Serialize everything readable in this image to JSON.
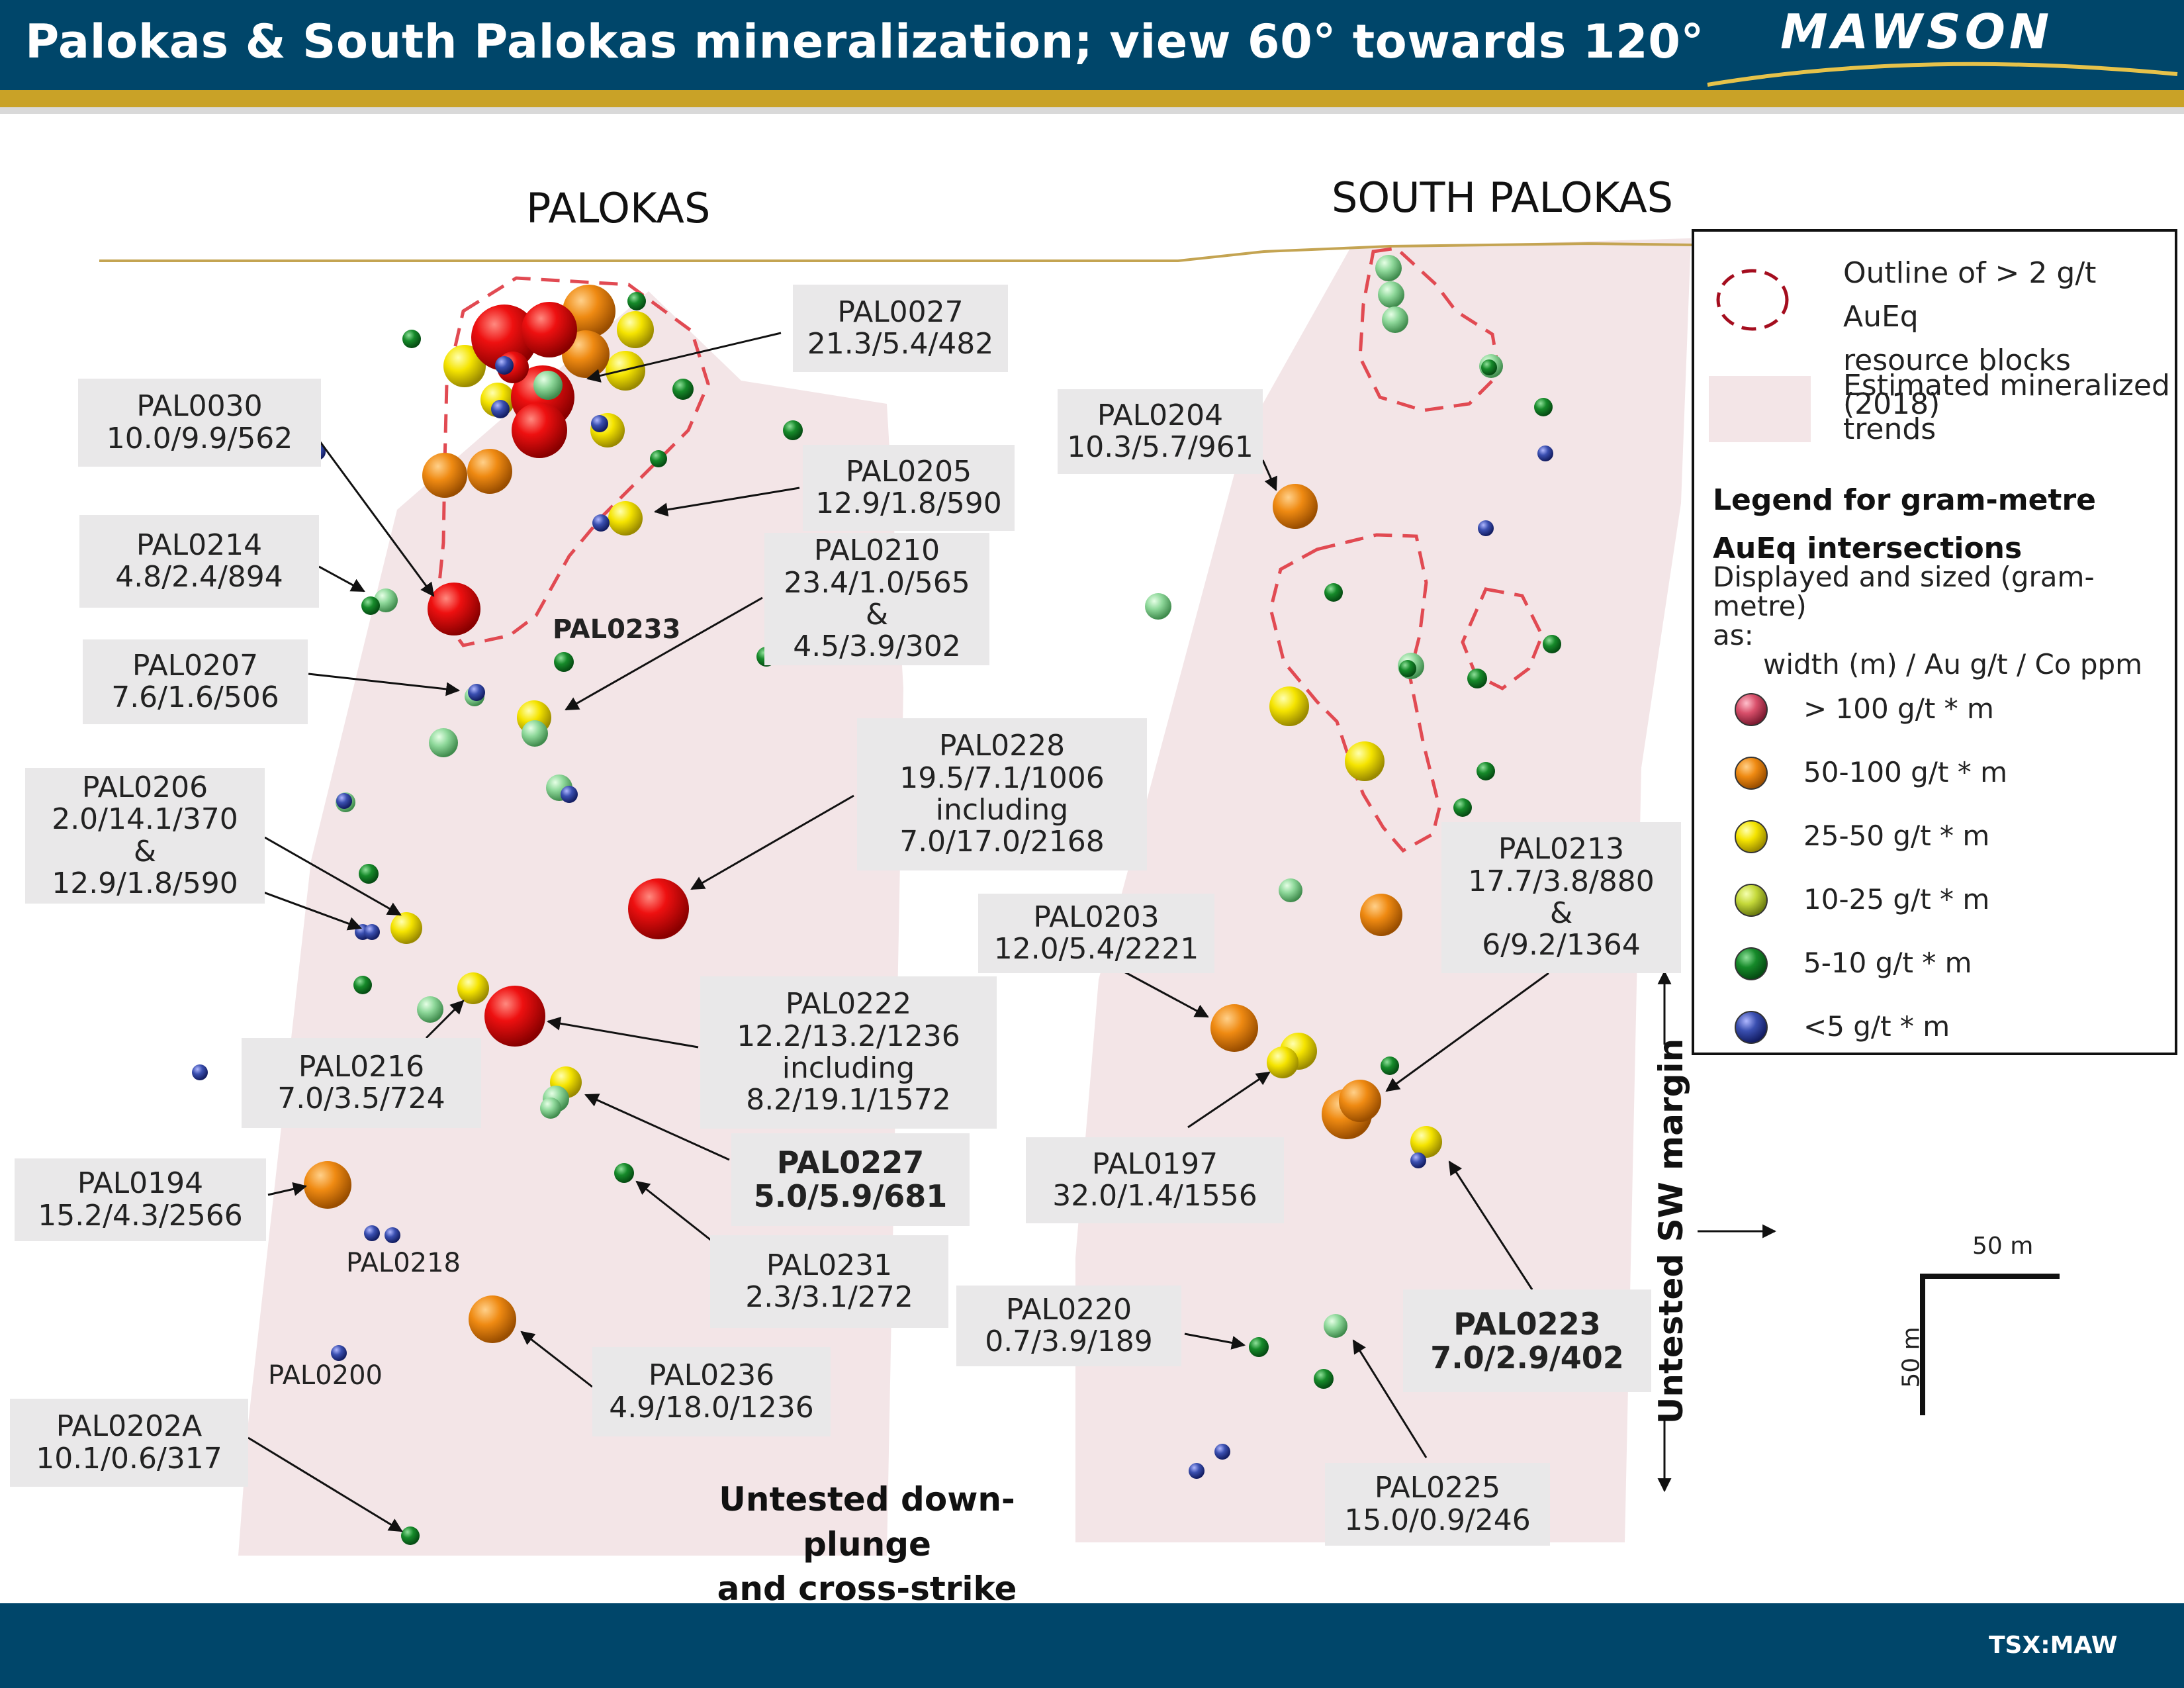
{
  "header": {
    "title": "Palokas & South Palokas mineralization; view 60° towards 120°",
    "logo": "MAWSON",
    "colors": {
      "bar": "#00466a",
      "accent": "#c9a227"
    }
  },
  "sections": {
    "palokas": "PALOKAS",
    "south_palokas": "SOUTH PALOKAS"
  },
  "legend": {
    "outline_label": [
      "Outline of > 2 g/t AuEq",
      "resource blocks (2018)"
    ],
    "trend_label": [
      "Estimated mineralized",
      "trends"
    ],
    "heading": [
      "Legend for gram-metre",
      "AuEq intersections"
    ],
    "description": [
      "Displayed and sized (gram-metre)",
      "as:",
      "width (m) / Au g/t / Co ppm"
    ],
    "items": [
      {
        "label": "> 100 g/t * m",
        "color": "#d9506b"
      },
      {
        "label": "50-100 g/t * m",
        "color": "#f0901a"
      },
      {
        "label": "25-50 g/t * m",
        "color": "#f5e600"
      },
      {
        "label": "10-25 g/t * m",
        "color": "#c5d93a"
      },
      {
        "label": "5-10 g/t * m",
        "color": "#1ea84a"
      },
      {
        "label": "<5 g/t * m",
        "color": "#3a4fa8"
      }
    ]
  },
  "callouts": [
    {
      "id": "PAL0027",
      "lines": [
        "PAL0027",
        "21.3/5.4/482"
      ]
    },
    {
      "id": "PAL0030",
      "lines": [
        "PAL0030",
        "10.0/9.9/562"
      ]
    },
    {
      "id": "PAL0205",
      "lines": [
        "PAL0205",
        "12.9/1.8/590"
      ]
    },
    {
      "id": "PAL0214",
      "lines": [
        "PAL0214",
        "4.8/2.4/894"
      ]
    },
    {
      "id": "PAL0210",
      "lines": [
        "PAL0210",
        "23.4/1.0/565",
        "&",
        "4.5/3.9/302"
      ]
    },
    {
      "id": "PAL0207",
      "lines": [
        "PAL0207",
        "7.6/1.6/506"
      ]
    },
    {
      "id": "PAL0228",
      "lines": [
        "PAL0228",
        "19.5/7.1/1006",
        "including",
        "7.0/17.0/2168"
      ]
    },
    {
      "id": "PAL0206",
      "lines": [
        "PAL0206",
        "2.0/14.1/370",
        "&",
        "12.9/1.8/590"
      ]
    },
    {
      "id": "PAL0222",
      "lines": [
        "PAL0222",
        "12.2/13.2/1236",
        "including",
        "8.2/19.1/1572"
      ]
    },
    {
      "id": "PAL0216",
      "lines": [
        "PAL0216",
        "7.0/3.5/724"
      ]
    },
    {
      "id": "PAL0227",
      "lines": [
        "PAL0227",
        "5.0/5.9/681"
      ],
      "bold": true
    },
    {
      "id": "PAL0194",
      "lines": [
        "PAL0194",
        "15.2/4.3/2566"
      ]
    },
    {
      "id": "PAL0231",
      "lines": [
        "PAL0231",
        "2.3/3.1/272"
      ]
    },
    {
      "id": "PAL0236",
      "lines": [
        "PAL0236",
        "4.9/18.0/1236"
      ]
    },
    {
      "id": "PAL0202A",
      "lines": [
        "PAL0202A",
        "10.1/0.6/317"
      ]
    },
    {
      "id": "PAL0204",
      "lines": [
        "PAL0204",
        "10.3/5.7/961"
      ]
    },
    {
      "id": "PAL0203",
      "lines": [
        "PAL0203",
        "12.0/5.4/2221"
      ]
    },
    {
      "id": "PAL0213",
      "lines": [
        "PAL0213",
        "17.7/3.8/880",
        "&",
        "6/9.2/1364"
      ]
    },
    {
      "id": "PAL0197",
      "lines": [
        "PAL0197",
        "32.0/1.4/1556"
      ]
    },
    {
      "id": "PAL0220",
      "lines": [
        "PAL0220",
        "0.7/3.9/189"
      ]
    },
    {
      "id": "PAL0223",
      "lines": [
        "PAL0223",
        "7.0/2.9/402"
      ],
      "bold": true
    },
    {
      "id": "PAL0225",
      "lines": [
        "PAL0225",
        "15.0/0.9/246"
      ]
    }
  ],
  "plain_labels": {
    "pal0233": "PAL0233",
    "pal0218": "PAL0218",
    "pal0200": "PAL0200"
  },
  "annotations": {
    "untested_down_plunge": [
      "Untested down-plunge",
      "and cross-strike"
    ],
    "untested_sw": "Untested SW margin"
  },
  "scale": {
    "horizontal": "50 m",
    "vertical": "50 m"
  },
  "footer": {
    "ticker": "TSX:MAW"
  }
}
